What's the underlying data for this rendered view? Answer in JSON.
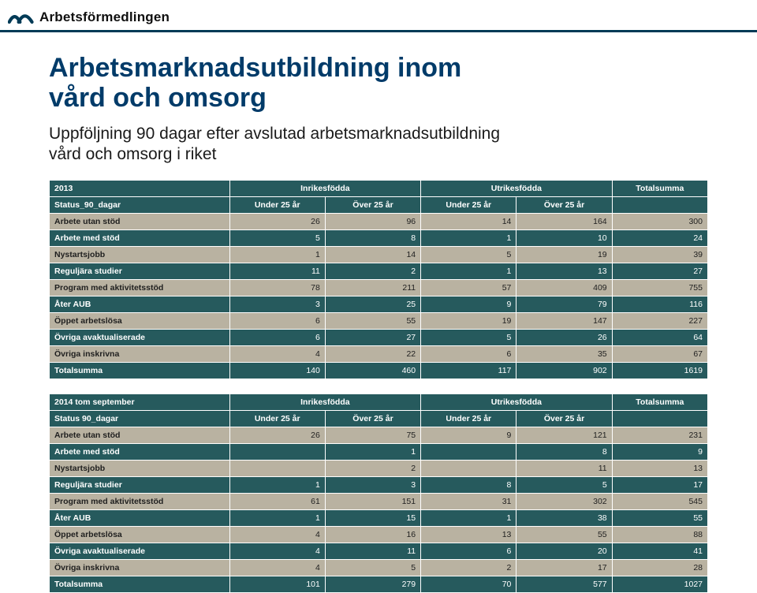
{
  "brand": "Arbetsförmedlingen",
  "title_line1": "Arbetsmarknadsutbildning inom",
  "title_line2": "vård och omsorg",
  "subtitle_line1": "Uppföljning 90 dagar efter avslutad arbetsmarknadsutbildning",
  "subtitle_line2": "vård och omsorg i riket",
  "colors": {
    "bg_dark": "#265a5d",
    "bg_light": "#b9b2a1",
    "title_color": "#003b69",
    "header_rule": "#003a56"
  },
  "tables": [
    {
      "year": "2013",
      "group_headers": [
        "Inrikesfödda",
        "Utrikesfödda",
        "Totalsumma"
      ],
      "row_header_label": "Status_90_dagar",
      "sub_headers": [
        "Under 25 år",
        "Över 25 år",
        "Under 25 år",
        "Över 25 år"
      ],
      "rows": [
        {
          "label": "Arbete utan stöd",
          "values": [
            "26",
            "96",
            "14",
            "164",
            "300"
          ],
          "shade": "light"
        },
        {
          "label": "Arbete med stöd",
          "values": [
            "5",
            "8",
            "1",
            "10",
            "24"
          ],
          "shade": "dark"
        },
        {
          "label": "Nystartsjobb",
          "values": [
            "1",
            "14",
            "5",
            "19",
            "39"
          ],
          "shade": "light"
        },
        {
          "label": "Reguljära studier",
          "values": [
            "11",
            "2",
            "1",
            "13",
            "27"
          ],
          "shade": "dark"
        },
        {
          "label": "Program med aktivitetsstöd",
          "values": [
            "78",
            "211",
            "57",
            "409",
            "755"
          ],
          "shade": "light"
        },
        {
          "label": "Åter AUB",
          "values": [
            "3",
            "25",
            "9",
            "79",
            "116"
          ],
          "shade": "dark"
        },
        {
          "label": "Öppet arbetslösa",
          "values": [
            "6",
            "55",
            "19",
            "147",
            "227"
          ],
          "shade": "light"
        },
        {
          "label": "Övriga avaktualiserade",
          "values": [
            "6",
            "27",
            "5",
            "26",
            "64"
          ],
          "shade": "dark"
        },
        {
          "label": "Övriga inskrivna",
          "values": [
            "4",
            "22",
            "6",
            "35",
            "67"
          ],
          "shade": "light"
        },
        {
          "label": "Totalsumma",
          "values": [
            "140",
            "460",
            "117",
            "902",
            "1619"
          ],
          "shade": "dark"
        }
      ]
    },
    {
      "year": "2014 tom september",
      "group_headers": [
        "Inrikesfödda",
        "Utrikesfödda",
        "Totalsumma"
      ],
      "row_header_label": "Status 90_dagar",
      "sub_headers": [
        "Under 25 år",
        "Över 25 år",
        "Under 25 år",
        "Över 25 år"
      ],
      "rows": [
        {
          "label": "Arbete utan stöd",
          "values": [
            "26",
            "75",
            "9",
            "121",
            "231"
          ],
          "shade": "light"
        },
        {
          "label": "Arbete med stöd",
          "values": [
            "",
            "1",
            "",
            "8",
            "9"
          ],
          "shade": "dark"
        },
        {
          "label": "Nystartsjobb",
          "values": [
            "",
            "2",
            "",
            "11",
            "13"
          ],
          "shade": "light"
        },
        {
          "label": "Reguljära studier",
          "values": [
            "1",
            "3",
            "8",
            "5",
            "17"
          ],
          "shade": "dark"
        },
        {
          "label": "Program med aktivitetsstöd",
          "values": [
            "61",
            "151",
            "31",
            "302",
            "545"
          ],
          "shade": "light"
        },
        {
          "label": "Åter AUB",
          "values": [
            "1",
            "15",
            "1",
            "38",
            "55"
          ],
          "shade": "dark"
        },
        {
          "label": "Öppet arbetslösa",
          "values": [
            "4",
            "16",
            "13",
            "55",
            "88"
          ],
          "shade": "light"
        },
        {
          "label": "Övriga avaktualiserade",
          "values": [
            "4",
            "11",
            "6",
            "20",
            "41"
          ],
          "shade": "dark"
        },
        {
          "label": "Övriga inskrivna",
          "values": [
            "4",
            "5",
            "2",
            "17",
            "28"
          ],
          "shade": "light"
        },
        {
          "label": "Totalsumma",
          "values": [
            "101",
            "279",
            "70",
            "577",
            "1027"
          ],
          "shade": "dark"
        }
      ]
    }
  ]
}
